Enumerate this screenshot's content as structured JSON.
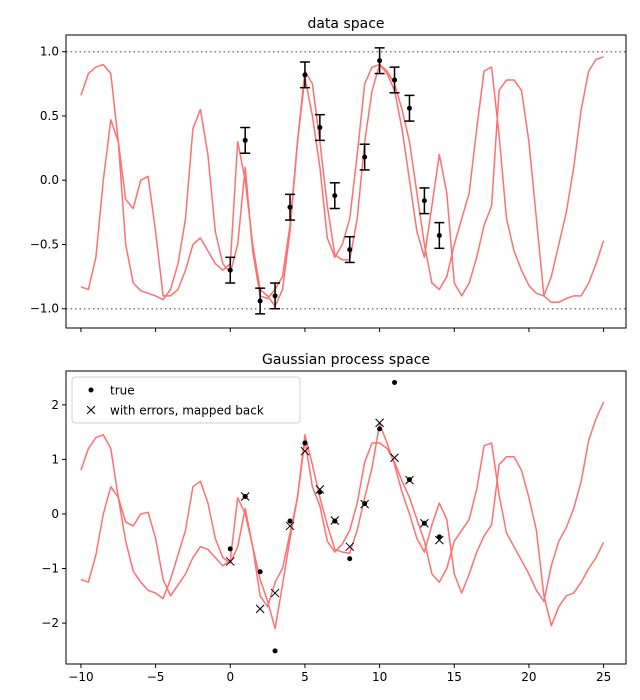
{
  "chart_data": [
    {
      "type": "line",
      "title": "data space",
      "xlim": [
        -11,
        26.5
      ],
      "ylim": [
        -1.15,
        1.13
      ],
      "xticks": [
        -10,
        -5,
        0,
        5,
        10,
        15,
        20,
        25
      ],
      "xtick_labels_visible": false,
      "yticks": [
        -1.0,
        -0.5,
        0.0,
        0.5,
        1.0
      ],
      "ytick_labels": [
        "−1.0",
        "−0.5",
        "0.0",
        "0.5",
        "1.0"
      ],
      "hlines": [
        {
          "y": 1.0,
          "style": "dotted",
          "color": "#808080"
        },
        {
          "y": -1.0,
          "style": "dotted",
          "color": "#808080"
        }
      ],
      "curve_color": "#ff7070",
      "series": [
        {
          "x": [
            -10,
            -9.5,
            -9,
            -8.5,
            -8,
            -7.5,
            -7,
            -6.5,
            -6,
            -5.5,
            -5,
            -4.5,
            -4,
            -3.5,
            -3,
            -2.5,
            -2,
            -1.5,
            -1,
            -0.5,
            0,
            0.5,
            1,
            1.5,
            2,
            2.5,
            3,
            3.5,
            4,
            4.5,
            5,
            5.5,
            6,
            6.5,
            7,
            7.5,
            8,
            8.5,
            9,
            9.5,
            10,
            10.5,
            11,
            11.5,
            12,
            12.5,
            13,
            13.5,
            14,
            14.5,
            15,
            15.5,
            16,
            16.5,
            17,
            17.5,
            18,
            18.5,
            19,
            19.5,
            20,
            20.5,
            21,
            21.5,
            22,
            22.5,
            23,
            23.5,
            24,
            24.5,
            25
          ],
          "values": [
            0.66,
            0.83,
            0.88,
            0.9,
            0.83,
            0.3,
            -0.5,
            -0.8,
            -0.86,
            -0.88,
            -0.9,
            -0.93,
            -0.85,
            -0.65,
            -0.3,
            0.4,
            0.55,
            0.2,
            -0.4,
            -0.65,
            -0.72,
            -0.5,
            0.1,
            -0.55,
            -0.9,
            -0.92,
            -0.85,
            -0.75,
            -0.35,
            0.3,
            0.8,
            0.5,
            0.1,
            -0.45,
            -0.6,
            -0.5,
            -0.3,
            0.2,
            0.75,
            0.88,
            0.9,
            0.85,
            0.75,
            0.55,
            0.3,
            -0.1,
            -0.5,
            -0.8,
            -0.85,
            -0.75,
            -0.5,
            -0.3,
            -0.1,
            0.4,
            0.85,
            0.88,
            0.35,
            -0.3,
            -0.55,
            -0.7,
            -0.82,
            -0.88,
            -0.9,
            -0.75,
            -0.5,
            -0.25,
            0.1,
            0.55,
            0.85,
            0.94,
            0.96
          ]
        },
        {
          "x": [
            -10,
            -9.5,
            -9,
            -8.5,
            -8,
            -7.5,
            -7,
            -6.5,
            -6,
            -5.5,
            -5,
            -4.5,
            -4,
            -3.5,
            -3,
            -2.5,
            -2,
            -1.5,
            -1,
            -0.5,
            0,
            0.5,
            1,
            1.5,
            2,
            2.5,
            3,
            3.5,
            4,
            4.5,
            5,
            5.5,
            6,
            6.5,
            7,
            7.5,
            8,
            8.5,
            9,
            9.5,
            10,
            10.5,
            11,
            11.5,
            12,
            12.5,
            13,
            13.5,
            14,
            14.5,
            15,
            15.5,
            16,
            16.5,
            17,
            17.5,
            18,
            18.5,
            19,
            19.5,
            20,
            20.5,
            21,
            21.5,
            22,
            22.5,
            23,
            23.5,
            24,
            24.5,
            25
          ],
          "values": [
            -0.83,
            -0.85,
            -0.6,
            0.0,
            0.47,
            0.3,
            -0.15,
            -0.22,
            0.0,
            0.03,
            -0.4,
            -0.9,
            -0.9,
            -0.85,
            -0.7,
            -0.5,
            -0.45,
            -0.55,
            -0.65,
            -0.7,
            -0.65,
            0.3,
            0.0,
            -0.5,
            -0.85,
            -0.9,
            -0.98,
            -0.85,
            -0.4,
            0.3,
            0.85,
            0.75,
            0.3,
            -0.2,
            -0.58,
            -0.62,
            -0.62,
            -0.3,
            0.3,
            0.7,
            0.9,
            0.83,
            0.7,
            0.4,
            0.0,
            -0.4,
            -0.6,
            -0.2,
            0.2,
            -0.1,
            -0.8,
            -0.9,
            -0.8,
            -0.6,
            -0.35,
            -0.2,
            0.7,
            0.78,
            0.78,
            0.7,
            0.3,
            -0.3,
            -0.9,
            -0.95,
            -0.95,
            -0.92,
            -0.9,
            -0.9,
            -0.8,
            -0.65,
            -0.47
          ]
        }
      ],
      "errorbars": {
        "x": [
          0,
          1,
          2,
          3,
          4,
          5,
          6,
          7,
          8,
          9,
          10,
          11,
          12,
          13,
          14
        ],
        "y": [
          -0.7,
          0.31,
          -0.94,
          -0.9,
          -0.21,
          0.82,
          0.41,
          -0.12,
          -0.54,
          0.18,
          0.93,
          0.78,
          0.56,
          -0.16,
          -0.43
        ],
        "err": 0.1
      }
    },
    {
      "type": "line",
      "title": "Gaussian process space",
      "xlim": [
        -11,
        26.5
      ],
      "ylim": [
        -2.75,
        2.62
      ],
      "xticks": [
        -10,
        -5,
        0,
        5,
        10,
        15,
        20,
        25
      ],
      "xtick_labels": [
        "−10",
        "−5",
        "0",
        "5",
        "10",
        "15",
        "20",
        "25"
      ],
      "yticks": [
        -2,
        -1,
        0,
        1,
        2
      ],
      "ytick_labels": [
        "−2",
        "−1",
        "0",
        "1",
        "2"
      ],
      "curve_color": "#ff7070",
      "legend": {
        "position": "upper-left",
        "entries": [
          "true",
          "with errors, mapped back"
        ]
      },
      "series": [
        {
          "x": [
            -10,
            -9.5,
            -9,
            -8.5,
            -8,
            -7.5,
            -7,
            -6.5,
            -6,
            -5.5,
            -5,
            -4.5,
            -4,
            -3.5,
            -3,
            -2.5,
            -2,
            -1.5,
            -1,
            -0.5,
            0,
            0.5,
            1,
            1.5,
            2,
            2.5,
            3,
            3.5,
            4,
            4.5,
            5,
            5.5,
            6,
            6.5,
            7,
            7.5,
            8,
            8.5,
            9,
            9.5,
            10,
            10.5,
            11,
            11.5,
            12,
            12.5,
            13,
            13.5,
            14,
            14.5,
            15,
            15.5,
            16,
            16.5,
            17,
            17.5,
            18,
            18.5,
            19,
            19.5,
            20,
            20.5,
            21,
            21.5,
            22,
            22.5,
            23,
            23.5,
            24,
            24.5,
            25
          ],
          "values": [
            0.8,
            1.2,
            1.4,
            1.45,
            1.2,
            0.3,
            -0.5,
            -1.05,
            -1.25,
            -1.4,
            -1.45,
            -1.55,
            -1.2,
            -0.75,
            -0.3,
            0.5,
            0.6,
            0.2,
            -0.45,
            -0.8,
            -0.9,
            -0.6,
            0.1,
            -0.6,
            -1.5,
            -1.7,
            -1.25,
            -1.0,
            -0.35,
            0.3,
            1.35,
            0.5,
            0.15,
            -0.5,
            -0.7,
            -0.55,
            -0.3,
            0.2,
            0.95,
            1.3,
            1.3,
            1.2,
            0.95,
            0.6,
            0.3,
            -0.1,
            -0.5,
            -1.1,
            -1.25,
            -1.0,
            -0.5,
            -0.3,
            -0.1,
            0.45,
            1.25,
            1.3,
            0.35,
            -0.35,
            -0.6,
            -0.85,
            -1.1,
            -1.4,
            -1.6,
            -0.95,
            -0.5,
            -0.25,
            0.1,
            0.6,
            1.35,
            1.75,
            2.05
          ]
        },
        {
          "x": [
            -10,
            -9.5,
            -9,
            -8.5,
            -8,
            -7.5,
            -7,
            -6.5,
            -6,
            -5.5,
            -5,
            -4.5,
            -4,
            -3.5,
            -3,
            -2.5,
            -2,
            -1.5,
            -1,
            -0.5,
            0,
            0.5,
            1,
            1.5,
            2,
            2.5,
            3,
            3.5,
            4,
            4.5,
            5,
            5.5,
            6,
            6.5,
            7,
            7.5,
            8,
            8.5,
            9,
            9.5,
            10,
            10.5,
            11,
            11.5,
            12,
            12.5,
            13,
            13.5,
            14,
            14.5,
            15,
            15.5,
            16,
            16.5,
            17,
            17.5,
            18,
            18.5,
            19,
            19.5,
            20,
            20.5,
            21,
            21.5,
            22,
            22.5,
            23,
            23.5,
            24,
            24.5,
            25
          ],
          "values": [
            -1.2,
            -1.25,
            -0.75,
            0.0,
            0.5,
            0.3,
            -0.15,
            -0.22,
            0.0,
            0.03,
            -0.45,
            -1.2,
            -1.5,
            -1.3,
            -1.1,
            -0.8,
            -0.6,
            -0.65,
            -0.8,
            -0.95,
            -0.85,
            0.3,
            0.0,
            -0.6,
            -1.2,
            -1.6,
            -2.1,
            -1.3,
            -0.45,
            0.3,
            1.45,
            0.9,
            0.3,
            -0.2,
            -0.65,
            -0.7,
            -0.72,
            -0.3,
            0.3,
            0.85,
            1.65,
            1.3,
            0.9,
            0.4,
            0.0,
            -0.45,
            -0.7,
            -0.2,
            0.2,
            -0.1,
            -1.1,
            -1.45,
            -1.1,
            -0.7,
            -0.4,
            -0.2,
            0.9,
            1.05,
            1.05,
            0.8,
            0.3,
            -0.3,
            -1.5,
            -2.05,
            -1.7,
            -1.5,
            -1.45,
            -1.25,
            -1.0,
            -0.8,
            -0.52
          ]
        }
      ],
      "true_points": {
        "x": [
          0,
          1,
          2,
          3,
          4,
          5,
          6,
          7,
          8,
          9,
          10,
          11,
          12,
          13,
          14
        ],
        "y": [
          -0.64,
          0.32,
          -1.06,
          -2.51,
          -0.13,
          1.3,
          0.4,
          -0.13,
          -0.82,
          0.19,
          1.56,
          2.41,
          0.63,
          -0.17,
          -0.42
        ]
      },
      "mapped_points": {
        "x": [
          0,
          1,
          2,
          3,
          4,
          5,
          6,
          7,
          8,
          9,
          10,
          11,
          12,
          13,
          14
        ],
        "y": [
          -0.87,
          0.32,
          -1.74,
          -1.45,
          -0.22,
          1.15,
          0.45,
          -0.12,
          -0.6,
          0.18,
          1.67,
          1.03,
          0.62,
          -0.17,
          -0.48
        ]
      }
    }
  ]
}
